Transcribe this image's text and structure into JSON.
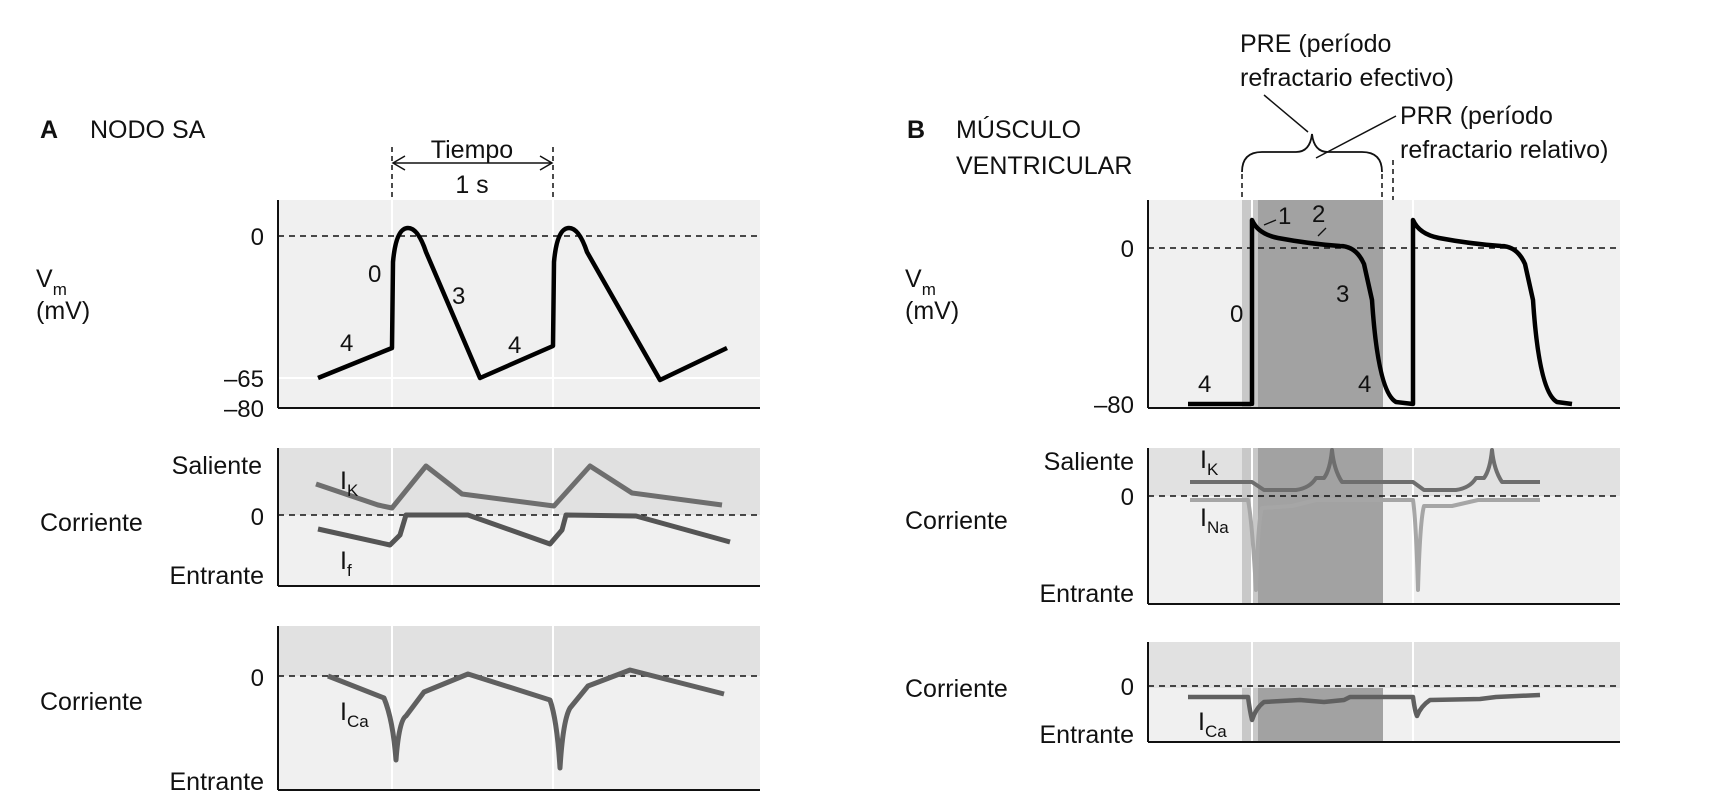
{
  "colors": {
    "panel_bg": "#f0f0f0",
    "band_bg": "#e1e1e1",
    "vm_trace": "#000000",
    "ik_trace": "#6e6e6e",
    "if_trace": "#555555",
    "ina_trace": "#a6a6a6",
    "ica_trace": "#606060",
    "ere_band": "#a2a2a2",
    "rrp_band": "#c8c8c8",
    "grid": "#ffffff"
  },
  "panel_a": {
    "letter": "A",
    "title": "NODO SA",
    "time_label": "Tiempo",
    "time_value": "1 s",
    "vm": {
      "label_v": "V",
      "label_sub": "m",
      "label_unit": "(mV)",
      "ticks": [
        "0",
        "–65",
        "–80"
      ],
      "phases": [
        "4",
        "0",
        "3",
        "4"
      ]
    },
    "currents": {
      "label_out": "Saliente",
      "label_axis": "Corriente",
      "tick_zero": "0",
      "label_in": "Entrante",
      "ik_letter": "I",
      "ik_sub": "K",
      "if_letter": "I",
      "if_sub": "f"
    },
    "calcium": {
      "label_axis": "Corriente",
      "tick_zero": "0",
      "label_in": "Entrante",
      "ica_letter": "I",
      "ica_sub": "Ca"
    }
  },
  "panel_b": {
    "letter": "B",
    "title_line1": "MÚSCULO",
    "title_line2": "VENTRICULAR",
    "ere_line1": "PRE (período",
    "ere_line2": "refractario efectivo)",
    "rrp_line1": "PRR (período",
    "rrp_line2": "refractario relativo)",
    "vm": {
      "label_v": "V",
      "label_sub": "m",
      "label_unit": "(mV)",
      "ticks": [
        "0",
        "–80"
      ],
      "phases": [
        "1",
        "2",
        "0",
        "3",
        "4",
        "4"
      ]
    },
    "currents": {
      "label_out": "Saliente",
      "tick_zero": "0",
      "label_axis": "Corriente",
      "label_in": "Entrante",
      "ik_letter": "I",
      "ik_sub": "K",
      "ina_letter": "I",
      "ina_sub": "Na"
    },
    "calcium": {
      "label_axis": "Corriente",
      "tick_zero": "0",
      "label_in": "Entrante",
      "ica_letter": "I",
      "ica_sub": "Ca"
    }
  }
}
